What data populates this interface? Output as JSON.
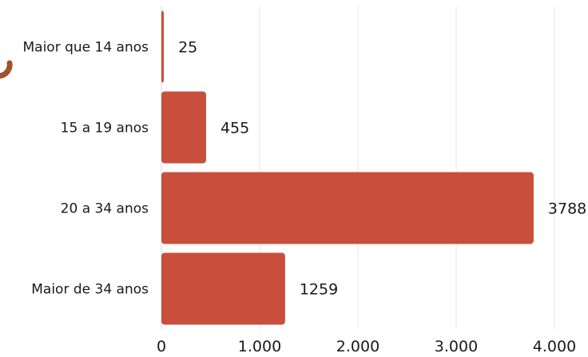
{
  "chart_data": {
    "type": "bar",
    "orientation": "horizontal",
    "categories": [
      "Maior que 14 anos",
      "15 a 19 anos",
      "20 a 34 anos",
      "Maior de 34 anos"
    ],
    "values": [
      25,
      455,
      3788,
      1259
    ],
    "value_labels": [
      "25",
      "455",
      "3788",
      "1259"
    ],
    "xlim": [
      0,
      4000
    ],
    "xticks": [
      0,
      1000,
      2000,
      3000,
      4000
    ],
    "xtick_labels": [
      "0",
      "1.000",
      "2.000",
      "3.000",
      "4.000"
    ],
    "grid": true,
    "legend": "none",
    "bar_color": "#C94F3C",
    "decoration_color": "#A0532E"
  }
}
